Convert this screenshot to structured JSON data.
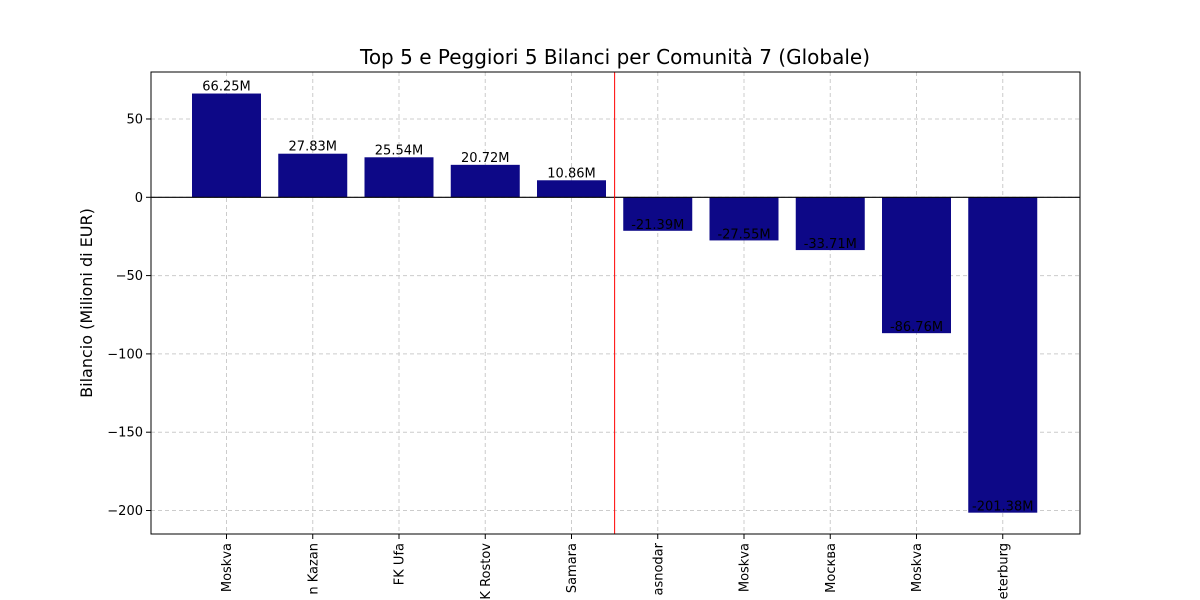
{
  "chart_data": {
    "type": "bar",
    "title": "Top 5 e Peggiori 5 Bilanci per Comunità 7 (Globale)",
    "xlabel": "",
    "ylabel": "Bilancio (Milioni di EUR)",
    "categories": [
      "Moskva",
      "n Kazan",
      "FK Ufa",
      "K Rostov",
      "Samara",
      "asnodar",
      "Moskva",
      "Москва",
      "Moskva",
      "eterburg"
    ],
    "values": [
      66.25,
      27.83,
      25.54,
      20.72,
      10.86,
      -21.39,
      -27.55,
      -33.71,
      -86.76,
      -201.38
    ],
    "value_labels": [
      "66.25M",
      "27.83M",
      "25.54M",
      "20.72M",
      "10.86M",
      "-21.39M",
      "-27.55M",
      "-33.71M",
      "-86.76M",
      "-201.38M"
    ],
    "ylim": [
      -215,
      80
    ],
    "yticks": [
      50,
      0,
      -50,
      -100,
      -150,
      -200
    ],
    "ytick_labels": [
      "50",
      "0",
      "−50",
      "−100",
      "−150",
      "−200"
    ],
    "grid": true,
    "bar_color": "#0d0887",
    "zero_line_color": "#000000",
    "separator_line_color": "#ff0000",
    "separator_after_index": 4
  }
}
